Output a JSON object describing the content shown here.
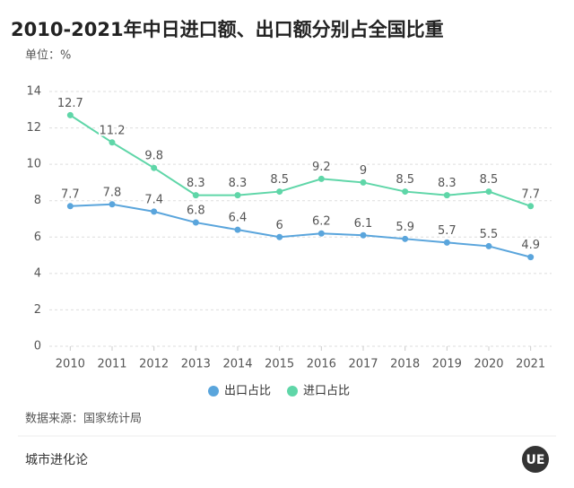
{
  "chart_data": {
    "type": "line",
    "title": "2010-2021年中日进口额、出口额分别占全国比重",
    "unit": "单位：%",
    "source": "数据来源：国家统计局",
    "footer": "城市进化论",
    "logo": "UE",
    "categories": [
      "2010",
      "2011",
      "2012",
      "2013",
      "2014",
      "2015",
      "2016",
      "2017",
      "2018",
      "2019",
      "2020",
      "2021"
    ],
    "series": [
      {
        "name": "出口占比",
        "color": "#5aa5dc",
        "values": [
          7.7,
          7.8,
          7.4,
          6.8,
          6.4,
          6,
          6.2,
          6.1,
          5.9,
          5.7,
          5.5,
          4.9
        ]
      },
      {
        "name": "进口占比",
        "color": "#5fd6a8",
        "values": [
          12.7,
          11.2,
          9.8,
          8.3,
          8.3,
          8.5,
          9.2,
          9,
          8.5,
          8.3,
          8.5,
          7.7
        ]
      }
    ],
    "ylim": [
      0,
      14
    ],
    "yticks": [
      0,
      2,
      4,
      6,
      8,
      10,
      12,
      14
    ],
    "grid": true,
    "legend": "bottom"
  }
}
